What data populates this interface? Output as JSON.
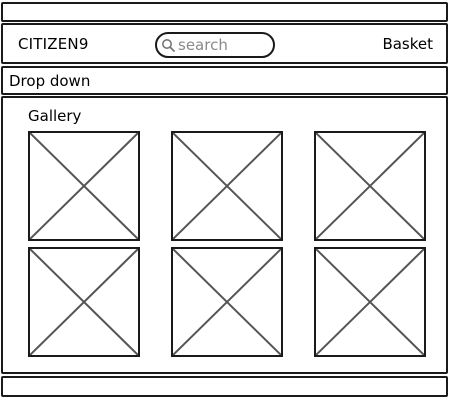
{
  "header": {
    "brand": "CITIZEN9",
    "search": {
      "placeholder": "search",
      "value": "",
      "icon": "search-icon"
    },
    "basket_label": "Basket"
  },
  "nav": {
    "dropdown_label": "Drop down"
  },
  "gallery": {
    "title": "Gallery",
    "images": [
      {
        "icon": "image-placeholder-icon"
      },
      {
        "icon": "image-placeholder-icon"
      },
      {
        "icon": "image-placeholder-icon"
      },
      {
        "icon": "image-placeholder-icon"
      },
      {
        "icon": "image-placeholder-icon"
      },
      {
        "icon": "image-placeholder-icon"
      }
    ]
  },
  "colors": {
    "stroke": "#1a1a1a",
    "placeholder_lines": "#555555",
    "background": "#ffffff"
  }
}
